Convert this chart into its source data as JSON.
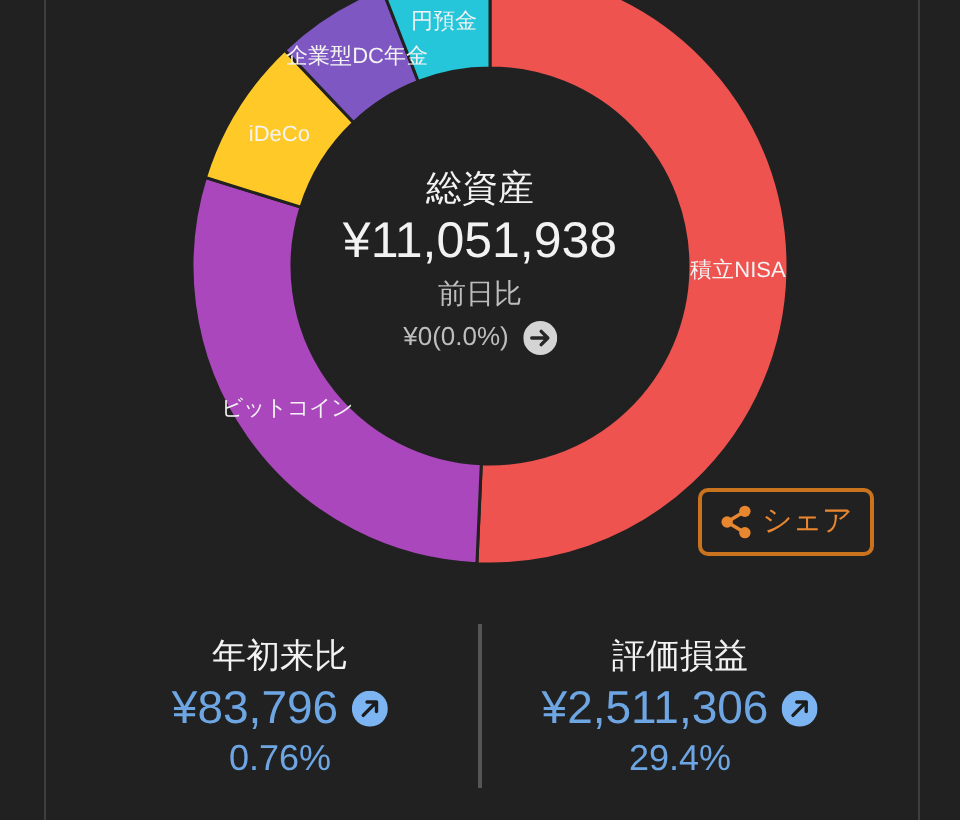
{
  "chart_data": {
    "type": "donut",
    "title": "総資産",
    "subtitle": "¥11,051,938",
    "categories": [
      "積立NISA",
      "ビットコイン",
      "iDeCo",
      "企業型DC年金",
      "円預金"
    ],
    "values": [
      50.7,
      29.1,
      8.1,
      6.2,
      5.9
    ],
    "colors": [
      "#ef5350",
      "#ab47bc",
      "#ffca28",
      "#7e57c2",
      "#26c6da"
    ],
    "annotations": [
      "前日比",
      "¥0(0.0%)",
      "シェア",
      "年初来比",
      "¥83,796",
      "0.76%",
      "評価損益",
      "¥2,511,306",
      "29.4%"
    ]
  }
}
